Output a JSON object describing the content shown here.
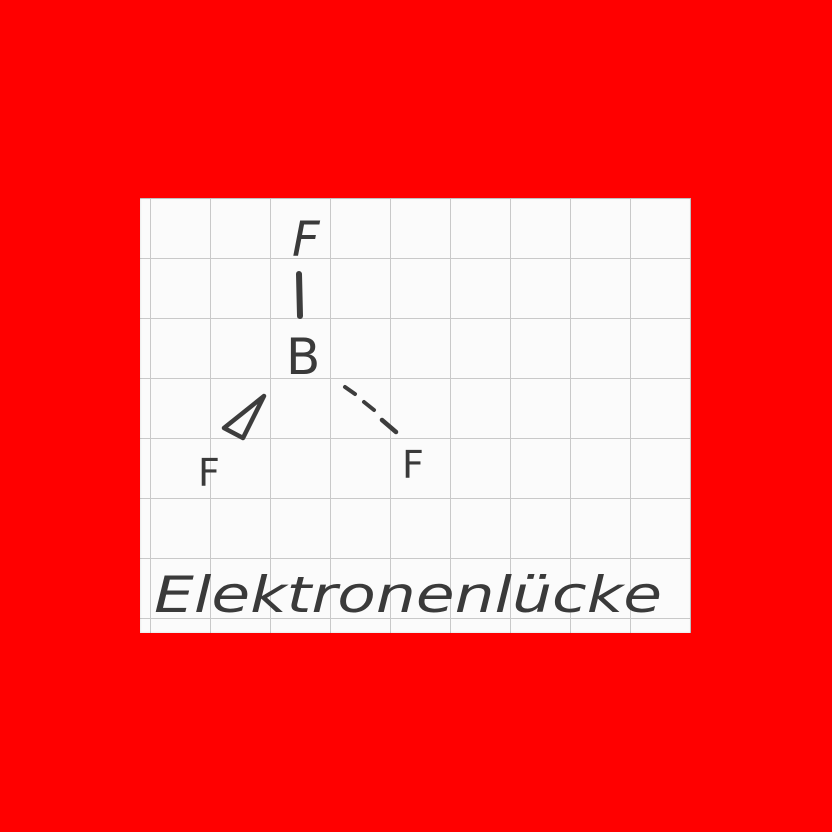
{
  "molecule": {
    "central_atom": "B",
    "top_atom": "F",
    "left_atom": "F",
    "right_atom": "F"
  },
  "caption": "Elektronenlücke"
}
